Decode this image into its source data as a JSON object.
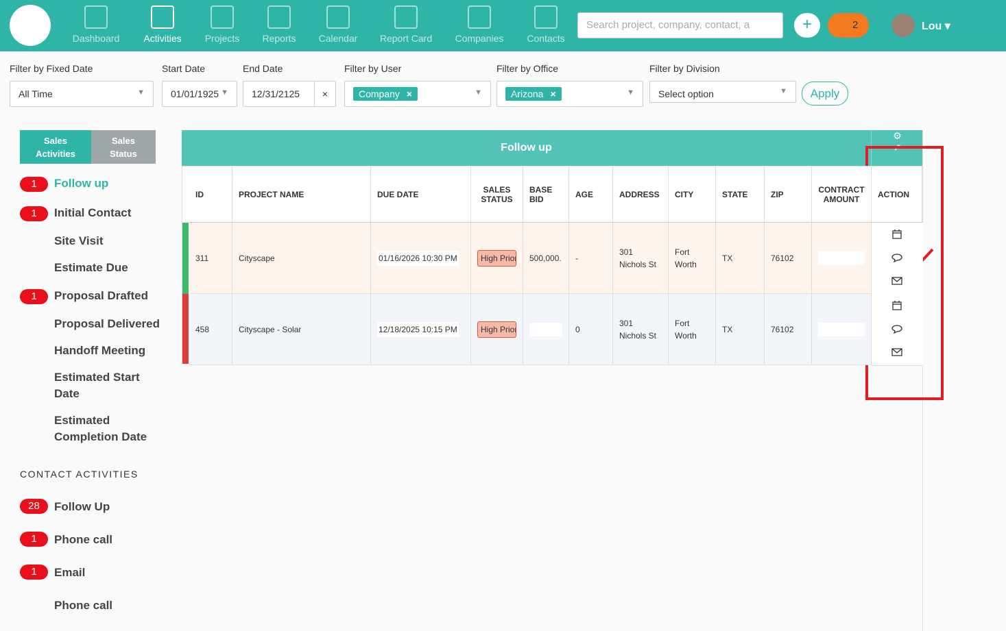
{
  "nav": {
    "items": [
      "Dashboard",
      "Activities",
      "Projects",
      "Reports",
      "Calendar",
      "Report Card",
      "Companies",
      "Contacts"
    ],
    "active_item": 1,
    "search_placeholder": "Search project, company, contact, a",
    "notifications": 2,
    "user": "Lou"
  },
  "filters": [
    {
      "label": "Filter by Fixed Date",
      "value": "All Time"
    },
    {
      "label": "Start Date",
      "value": "01/01/1925"
    },
    {
      "label": "End Date",
      "value": "12/31/2125"
    },
    {
      "label": "Filter by User",
      "tag": "Company"
    },
    {
      "label": "Filter by Office",
      "tag": "Arizona"
    },
    {
      "label": "Filter by Division",
      "placeholder": "Select option"
    }
  ],
  "apply": "Apply",
  "sidebar": {
    "tabs": [
      "Sales Activities",
      "Sales Status"
    ],
    "sales_items": [
      {
        "label": "Follow up",
        "count": 1
      },
      {
        "label": "Initial Contact",
        "count": 1
      },
      {
        "label": "Site Visit"
      },
      {
        "label": "Estimate Due"
      },
      {
        "label": "Proposal Drafted",
        "count": 1
      },
      {
        "label": "Proposal Delivered"
      },
      {
        "label": "Handoff Meeting"
      },
      {
        "label": "Estimated Start Date"
      },
      {
        "label": "Estimated Completion Date"
      }
    ],
    "contact_heading": "CONTACT ACTIVITIES",
    "contact_items": [
      {
        "label": "Follow Up",
        "count": 28
      },
      {
        "label": "Phone call",
        "count": 1
      },
      {
        "label": "Email",
        "count": 1
      },
      {
        "label": "Phone call"
      }
    ]
  },
  "table": {
    "title": "Follow up",
    "columns": [
      "ID",
      "PROJECT NAME",
      "DUE DATE",
      "SALES STATUS",
      "BASE BID",
      "AGE",
      "ADDRESS",
      "CITY",
      "STATE",
      "ZIP",
      "CONTRACT AMOUNT",
      "ACTION"
    ],
    "rows": [
      {
        "color": "#3dbb6a",
        "cells": [
          "311",
          "Cityscape",
          "01/16/2026 10:30 PM",
          "High Prior",
          "500,000.",
          "-",
          "301 Nichols St",
          "Fort Worth",
          "TX",
          "76102",
          null
        ]
      },
      {
        "color": "#e03a3a",
        "cells": [
          "458",
          "Cityscape - Solar",
          "12/18/2025 10:15 PM",
          "High Prior",
          null,
          "0",
          "301 Nichols St",
          "Fort Worth",
          "TX",
          "76102",
          null
        ]
      }
    ]
  }
}
